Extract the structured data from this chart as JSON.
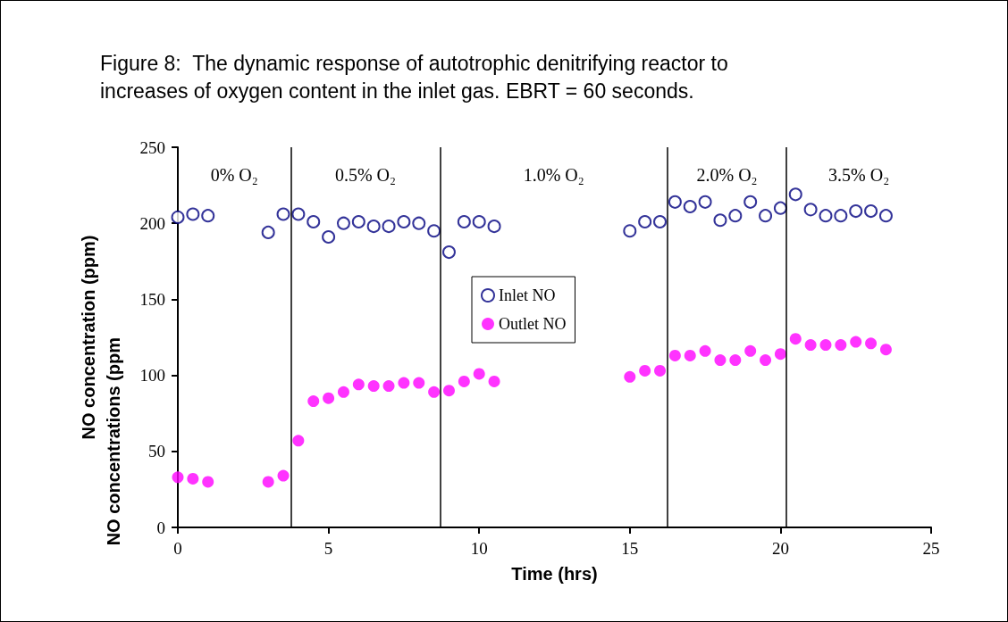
{
  "chart_data": {
    "type": "scatter",
    "title": "Figure 8:  The dynamic response of autotrophic denitrifying reactor to\nincreases of oxygen content in the inlet gas. EBRT = 60 seconds.",
    "xlabel": "Time (hrs)",
    "ylabel": "NO concentration (ppm)",
    "x": [
      0,
      0.5,
      1,
      3,
      3.5,
      4,
      4.5,
      5,
      5.5,
      6,
      6.5,
      7,
      7.5,
      8,
      8.5,
      9,
      9.5,
      10,
      10.5,
      15,
      15.5,
      16,
      16.5,
      17,
      17.5,
      18,
      18.5,
      19,
      19.5,
      20,
      20.5,
      21,
      21.5,
      22,
      22.5,
      23,
      23.5
    ],
    "series": [
      {
        "name": "Inlet NO",
        "color": "#000080",
        "values": [
          204,
          206,
          205,
          194,
          206,
          206,
          201,
          191,
          200,
          201,
          198,
          198,
          201,
          200,
          195,
          181,
          201,
          201,
          198,
          195,
          201,
          201,
          214,
          211,
          214,
          202,
          205,
          214,
          205,
          210,
          219,
          209,
          205,
          205,
          208,
          208,
          205
        ]
      },
      {
        "name": "Outlet NO",
        "color": "#ff00ff",
        "values": [
          33,
          32,
          30,
          30,
          34,
          57,
          83,
          85,
          89,
          94,
          93,
          93,
          95,
          95,
          89,
          90,
          96,
          101,
          96,
          99,
          103,
          103,
          113,
          113,
          116,
          110,
          110,
          116,
          110,
          114,
          124,
          120,
          120,
          120,
          122,
          121,
          117
        ]
      }
    ],
    "xlim": [
      0,
      25
    ],
    "xticks": [
      0,
      5,
      10,
      15,
      20,
      25
    ],
    "ylim": [
      0,
      250
    ],
    "yticks": [
      0,
      50,
      100,
      150,
      200,
      250
    ],
    "ref_lines": [
      {
        "axis": "x",
        "value": 3.75,
        "color": "#000000"
      },
      {
        "axis": "x",
        "value": 8.7,
        "color": "#000000"
      },
      {
        "axis": "x",
        "value": 16.25,
        "color": "#000000"
      },
      {
        "axis": "x",
        "value": 20.2,
        "color": "#000000"
      }
    ],
    "annotations": [
      "0% O₂",
      "0.5% O₂",
      "1.0% O₂",
      "2.0% O₂",
      "3.5% O₂",
      "NO concentrations (ppm"
    ],
    "legend": "center",
    "marker": "circle",
    "grid": false
  }
}
